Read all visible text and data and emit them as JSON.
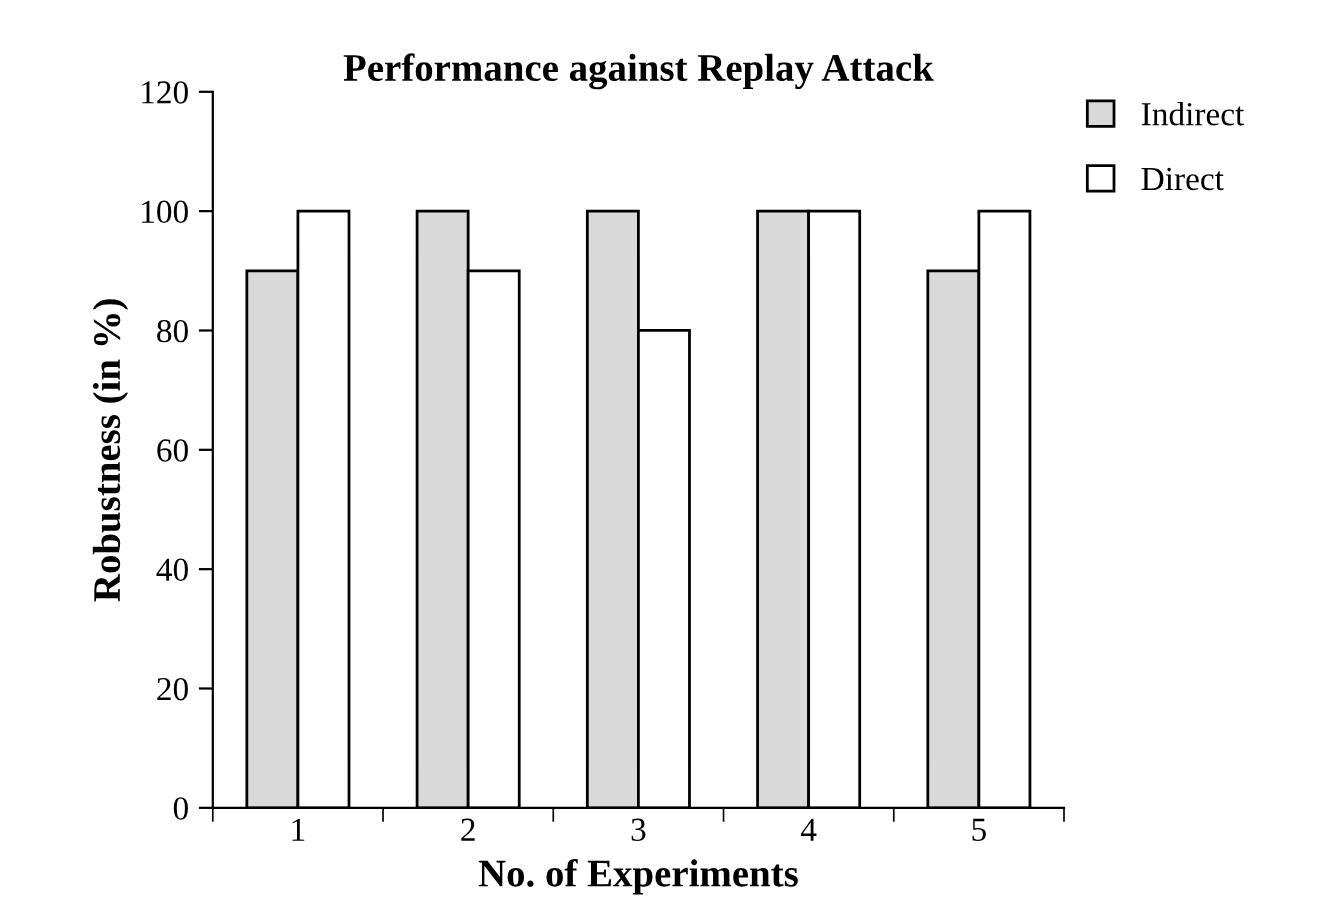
{
  "chart_data": {
    "type": "bar",
    "title": "Performance against Replay Attack",
    "xlabel": "No. of Experiments",
    "ylabel": "Robustness (in %)",
    "categories": [
      "1",
      "2",
      "3",
      "4",
      "5"
    ],
    "series": [
      {
        "name": "Indirect",
        "color": "#d9d9d9",
        "values": [
          90,
          100,
          100,
          100,
          90
        ]
      },
      {
        "name": "Direct",
        "color": "#ffffff",
        "values": [
          100,
          90,
          80,
          100,
          100
        ]
      }
    ],
    "ylim": [
      0,
      120
    ],
    "yticks": [
      0,
      20,
      40,
      60,
      80,
      100,
      120
    ],
    "grid": false,
    "legend": "top right"
  }
}
